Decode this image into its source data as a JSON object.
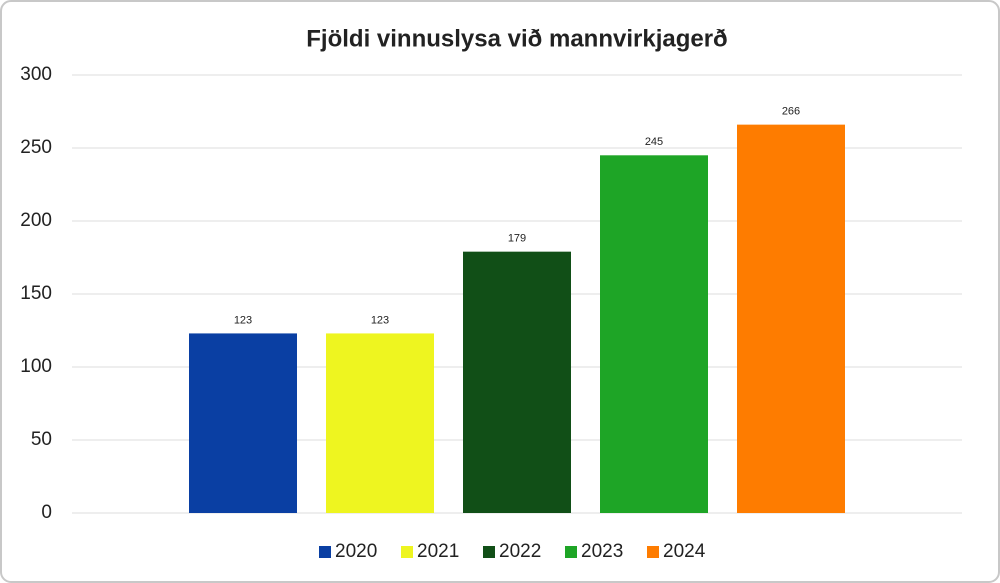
{
  "chart_data": {
    "type": "bar",
    "title": "Fjöldi vinnuslysa við mannvirkjagerð",
    "categories": [
      null
    ],
    "series": [
      {
        "name": "2020",
        "color": "#0a3fa3",
        "values": [
          123
        ]
      },
      {
        "name": "2021",
        "color": "#eef520",
        "values": [
          123
        ]
      },
      {
        "name": "2022",
        "color": "#114f17",
        "values": [
          179
        ]
      },
      {
        "name": "2023",
        "color": "#1ea526",
        "values": [
          245
        ]
      },
      {
        "name": "2024",
        "color": "#fe7c00",
        "values": [
          266
        ]
      }
    ],
    "ylim": [
      0,
      300
    ],
    "yticks": [
      0,
      50,
      100,
      150,
      200,
      250,
      300
    ],
    "grid": true,
    "legend": "bottom"
  }
}
